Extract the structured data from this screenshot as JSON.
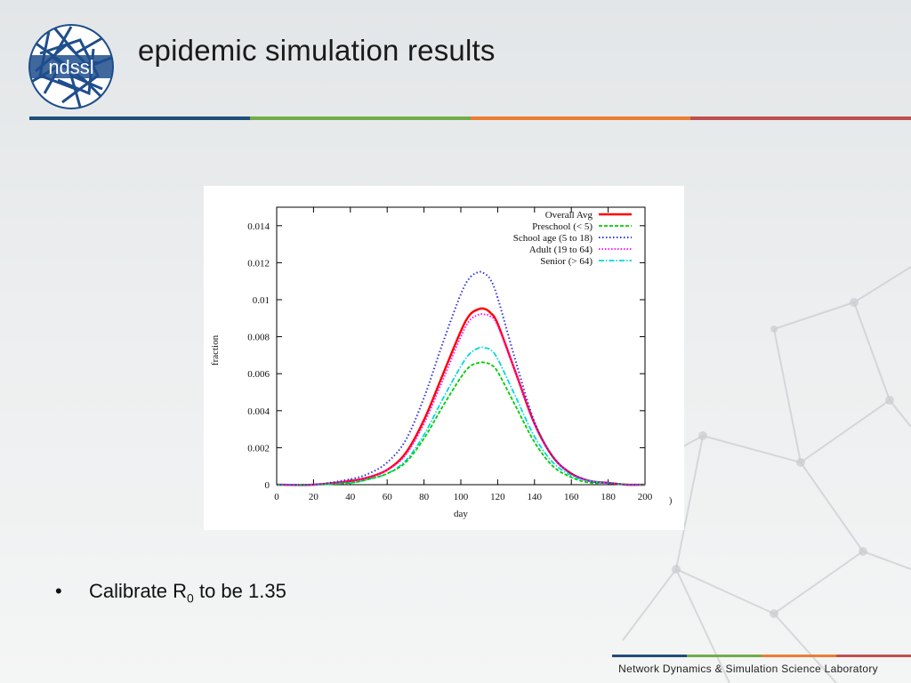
{
  "slide": {
    "title": "epidemic simulation results",
    "logo_text": "ndssl",
    "bullet": {
      "marker": "•",
      "text_before": "Calibrate R",
      "subscript": "0",
      "text_after": " to be 1.35"
    },
    "footer": "Network Dynamics & Simulation Science Laboratory",
    "stray_tick_fragment": ")"
  },
  "colors": {
    "logo_blue": "#1f4e8c",
    "stripe": [
      "#1f4e79",
      "#70ad47",
      "#ed7d31",
      "#c0504d"
    ]
  },
  "chart_data": {
    "type": "line",
    "title": "",
    "xlabel": "day",
    "ylabel": "fraction",
    "xlim": [
      0,
      200
    ],
    "ylim": [
      0,
      0.015
    ],
    "x_ticks": [
      0,
      20,
      40,
      60,
      80,
      100,
      120,
      140,
      160,
      180,
      200
    ],
    "x_tick_labels": [
      "0",
      "20",
      "40",
      "60",
      "80",
      "100",
      "120",
      "140",
      "160",
      "180",
      "200"
    ],
    "y_ticks": [
      0,
      0.002,
      0.004,
      0.006,
      0.008,
      0.01,
      0.012,
      0.014
    ],
    "y_tick_labels": [
      "0",
      "0.002",
      "0.004",
      "0.006",
      "0.008",
      "0.01",
      "0.012",
      "0.014"
    ],
    "legend_position": "top-right",
    "grid": false,
    "x": [
      0,
      20,
      40,
      50,
      60,
      70,
      80,
      90,
      100,
      105,
      110,
      113,
      116,
      120,
      130,
      140,
      150,
      160,
      170,
      180,
      190,
      200
    ],
    "series": [
      {
        "name": "Overall Avg",
        "color": "#ff0000",
        "dash": "solid",
        "width": 2.4,
        "values": [
          0,
          0,
          0.0002,
          0.0004,
          0.0008,
          0.0017,
          0.0035,
          0.0059,
          0.0083,
          0.0092,
          0.0095,
          0.0095,
          0.0093,
          0.0087,
          0.006,
          0.0033,
          0.0015,
          0.0006,
          0.0002,
          0.0001,
          0,
          0
        ]
      },
      {
        "name": "Preschool (< 5)",
        "color": "#00cc00",
        "dash": "4,2",
        "width": 1.8,
        "values": [
          0,
          0,
          0.0001,
          0.0003,
          0.0006,
          0.0012,
          0.0025,
          0.0042,
          0.0058,
          0.0064,
          0.0066,
          0.0066,
          0.0065,
          0.0061,
          0.0042,
          0.0023,
          0.001,
          0.0004,
          0.0001,
          0.0001,
          0,
          0
        ]
      },
      {
        "name": "School age (5 to 18)",
        "color": "#3333dd",
        "dash": "1.5,2.5",
        "width": 2,
        "values": [
          0,
          0,
          0.0003,
          0.0006,
          0.0012,
          0.0024,
          0.0047,
          0.0076,
          0.0103,
          0.0112,
          0.0115,
          0.0114,
          0.0111,
          0.0101,
          0.0066,
          0.0034,
          0.0015,
          0.0006,
          0.0002,
          0.0001,
          0,
          0
        ]
      },
      {
        "name": "Adult (19 to 64)",
        "color": "#ff00ff",
        "dash": "1.5,2",
        "width": 1.8,
        "values": [
          0,
          0,
          0.0002,
          0.0004,
          0.0008,
          0.0016,
          0.0033,
          0.0056,
          0.008,
          0.0089,
          0.0092,
          0.0092,
          0.0091,
          0.0086,
          0.006,
          0.0033,
          0.0015,
          0.0006,
          0.0002,
          0.0001,
          0,
          0
        ]
      },
      {
        "name": "Senior (> 64)",
        "color": "#00d8e0",
        "dash": "6,2,1.5,2",
        "width": 1.8,
        "values": [
          0,
          0,
          0.0001,
          0.0003,
          0.0006,
          0.0013,
          0.0027,
          0.0046,
          0.0064,
          0.0071,
          0.0074,
          0.0074,
          0.0073,
          0.0068,
          0.0047,
          0.0026,
          0.0012,
          0.0005,
          0.0002,
          0.0001,
          0,
          0
        ]
      }
    ]
  }
}
